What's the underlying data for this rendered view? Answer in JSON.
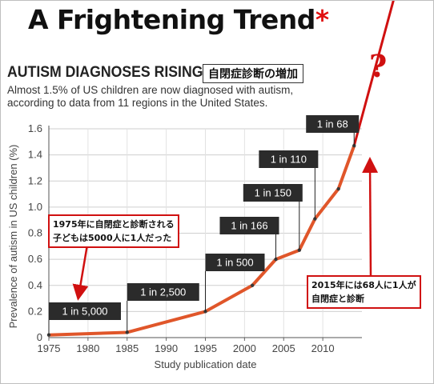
{
  "slide": {
    "title": "A Frightening Trend",
    "title_mark": "*",
    "question_mark": "?",
    "jp_heading": "自閉症診断の増加",
    "note_1975": [
      "1975年に自閉症と診断される",
      "子どもは5000人に1人だった"
    ],
    "note_2015": [
      "2015年には68人に1人が",
      "自閉症と診断"
    ],
    "accent_color": "#d01010"
  },
  "chart_data": {
    "type": "line",
    "title": "AUTISM DIAGNOSES RISING",
    "subtitle": "Almost 1.5% of US children are now diagnosed with autism, according to data from 11 regions in the United States.",
    "xlabel": "Study publication date",
    "ylabel": "Prevalence of autism in US children (%)",
    "xlim": [
      1975,
      2015
    ],
    "ylim": [
      0,
      1.6
    ],
    "xticks": [
      1975,
      1980,
      1985,
      1990,
      1995,
      2000,
      2005,
      2010
    ],
    "yticks": [
      0,
      0.2,
      0.4,
      0.6,
      0.8,
      1.0,
      1.2,
      1.4,
      1.6
    ],
    "ytick_labels": [
      "0",
      "0.2",
      "0.4",
      "0.6",
      "0.8",
      "1.0",
      "1.2",
      "1.4",
      "1.6"
    ],
    "grid": true,
    "series_color": "#e0562a",
    "x": [
      1975,
      1985,
      1995,
      2001,
      2004,
      2007,
      2009,
      2012,
      2014
    ],
    "values": [
      0.02,
      0.04,
      0.2,
      0.4,
      0.6,
      0.67,
      0.91,
      1.14,
      1.47
    ],
    "annotations": [
      {
        "text": "1 in 5,000",
        "x": 1975,
        "y": 0.02
      },
      {
        "text": "1 in 2,500",
        "x": 1985,
        "y": 0.04
      },
      {
        "text": "1 in 500",
        "x": 1995,
        "y": 0.2
      },
      {
        "text": "1 in 166",
        "x": 2004,
        "y": 0.6
      },
      {
        "text": "1 in 150",
        "x": 2007,
        "y": 0.67
      },
      {
        "text": "1 in 110",
        "x": 2009,
        "y": 0.91
      },
      {
        "text": "1 in 68",
        "x": 2014,
        "y": 1.47
      }
    ],
    "extrapolation": {
      "x": 2020,
      "y": 2.8,
      "color": "#d01010"
    }
  }
}
